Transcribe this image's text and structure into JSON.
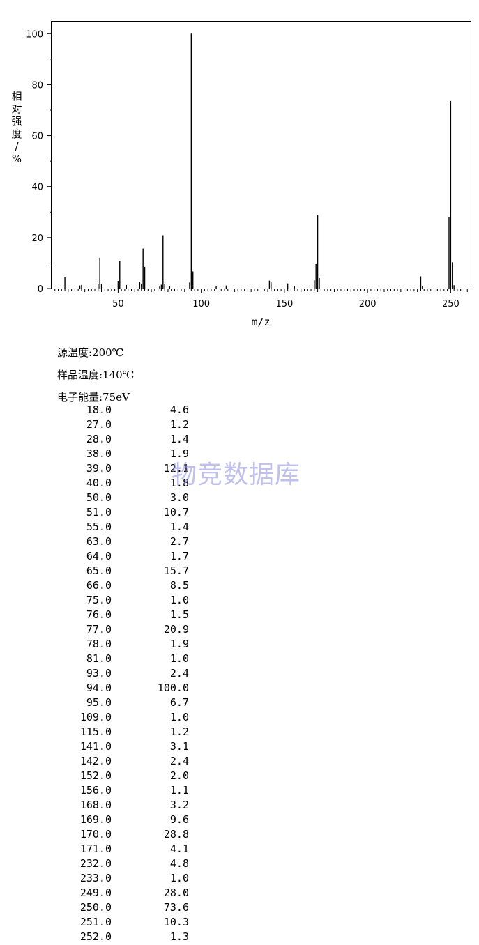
{
  "chart_data": {
    "type": "bar",
    "title": "",
    "xlabel": "m/z",
    "ylabel": "相对强度/%",
    "xlim": [
      10,
      262
    ],
    "ylim": [
      0,
      105
    ],
    "x_ticks": [
      50,
      100,
      150,
      200,
      250
    ],
    "y_ticks": [
      0,
      20,
      40,
      60,
      80,
      100
    ],
    "grid": false,
    "x": [
      18,
      27,
      28,
      38,
      39,
      40,
      50,
      51,
      55,
      63,
      64,
      65,
      66,
      75,
      76,
      77,
      78,
      81,
      93,
      94,
      95,
      109,
      115,
      141,
      142,
      152,
      156,
      168,
      169,
      170,
      171,
      232,
      233,
      249,
      250,
      251,
      252
    ],
    "values": [
      4.6,
      1.2,
      1.4,
      1.9,
      12.1,
      1.8,
      3.0,
      10.7,
      1.4,
      2.7,
      1.7,
      15.7,
      8.5,
      1.0,
      1.5,
      20.9,
      1.9,
      1.0,
      2.4,
      100.0,
      6.7,
      1.0,
      1.2,
      3.1,
      2.4,
      2.0,
      1.1,
      3.2,
      9.6,
      28.8,
      4.1,
      4.8,
      1.0,
      28.0,
      73.6,
      10.3,
      1.3
    ]
  },
  "conditions": {
    "source_temp": "源温度:200℃",
    "sample_temp": "样品温度:140℃",
    "electron_energy": "电子能量:75eV"
  },
  "watermark": "物竞数据库",
  "peaks": [
    {
      "mz": "18.0",
      "intensity": "4.6"
    },
    {
      "mz": "27.0",
      "intensity": "1.2"
    },
    {
      "mz": "28.0",
      "intensity": "1.4"
    },
    {
      "mz": "38.0",
      "intensity": "1.9"
    },
    {
      "mz": "39.0",
      "intensity": "12.1"
    },
    {
      "mz": "40.0",
      "intensity": "1.8"
    },
    {
      "mz": "50.0",
      "intensity": "3.0"
    },
    {
      "mz": "51.0",
      "intensity": "10.7"
    },
    {
      "mz": "55.0",
      "intensity": "1.4"
    },
    {
      "mz": "63.0",
      "intensity": "2.7"
    },
    {
      "mz": "64.0",
      "intensity": "1.7"
    },
    {
      "mz": "65.0",
      "intensity": "15.7"
    },
    {
      "mz": "66.0",
      "intensity": "8.5"
    },
    {
      "mz": "75.0",
      "intensity": "1.0"
    },
    {
      "mz": "76.0",
      "intensity": "1.5"
    },
    {
      "mz": "77.0",
      "intensity": "20.9"
    },
    {
      "mz": "78.0",
      "intensity": "1.9"
    },
    {
      "mz": "81.0",
      "intensity": "1.0"
    },
    {
      "mz": "93.0",
      "intensity": "2.4"
    },
    {
      "mz": "94.0",
      "intensity": "100.0"
    },
    {
      "mz": "95.0",
      "intensity": "6.7"
    },
    {
      "mz": "109.0",
      "intensity": "1.0"
    },
    {
      "mz": "115.0",
      "intensity": "1.2"
    },
    {
      "mz": "141.0",
      "intensity": "3.1"
    },
    {
      "mz": "142.0",
      "intensity": "2.4"
    },
    {
      "mz": "152.0",
      "intensity": "2.0"
    },
    {
      "mz": "156.0",
      "intensity": "1.1"
    },
    {
      "mz": "168.0",
      "intensity": "3.2"
    },
    {
      "mz": "169.0",
      "intensity": "9.6"
    },
    {
      "mz": "170.0",
      "intensity": "28.8"
    },
    {
      "mz": "171.0",
      "intensity": "4.1"
    },
    {
      "mz": "232.0",
      "intensity": "4.8"
    },
    {
      "mz": "233.0",
      "intensity": "1.0"
    },
    {
      "mz": "249.0",
      "intensity": "28.0"
    },
    {
      "mz": "250.0",
      "intensity": "73.6"
    },
    {
      "mz": "251.0",
      "intensity": "10.3"
    },
    {
      "mz": "252.0",
      "intensity": "1.3"
    }
  ]
}
